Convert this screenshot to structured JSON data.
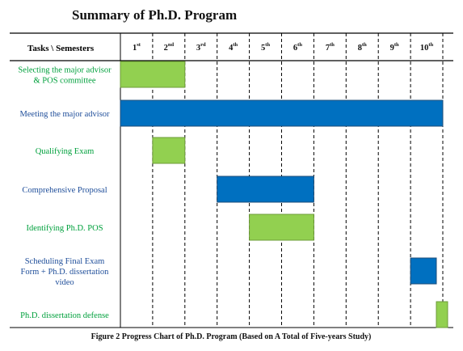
{
  "chart_data": {
    "type": "gantt",
    "title": "Summary of Ph.D. Program",
    "caption": "Figure 2  Progress Chart of Ph.D. Program (Based on A Total of Five-years Study)",
    "header_tasks": "Tasks",
    "header_sep": " \\ ",
    "header_semesters": "Semesters",
    "semesters": [
      {
        "num": "1",
        "sup": "st"
      },
      {
        "num": "2",
        "sup": "nd"
      },
      {
        "num": "3",
        "sup": "rd"
      },
      {
        "num": "4",
        "sup": "th"
      },
      {
        "num": "5",
        "sup": "th"
      },
      {
        "num": "6",
        "sup": "th"
      },
      {
        "num": "7",
        "sup": "th"
      },
      {
        "num": "8",
        "sup": "th"
      },
      {
        "num": "9",
        "sup": "th"
      },
      {
        "num": "10",
        "sup": "th"
      }
    ],
    "tasks": [
      {
        "label": [
          "Selecting the major advisor",
          "& POS committee"
        ],
        "label_color": "green",
        "start": 1,
        "end": 2,
        "color": "green"
      },
      {
        "label": [
          "Meeting the major advisor"
        ],
        "label_color": "blue",
        "start": 1,
        "end": 10,
        "color": "blue"
      },
      {
        "label": [
          "Qualifying Exam"
        ],
        "label_color": "green",
        "start": 2,
        "end": 2,
        "color": "green"
      },
      {
        "label": [
          "Comprehensive Proposal"
        ],
        "label_color": "blue",
        "start": 4,
        "end": 6,
        "color": "blue"
      },
      {
        "label": [
          "Identifying Ph.D. POS"
        ],
        "label_color": "green",
        "start": 5,
        "end": 6,
        "color": "green"
      },
      {
        "label": [
          "Scheduling Final Exam",
          "Form + Ph.D. dissertation",
          "video"
        ],
        "label_color": "blue",
        "start": 10.0,
        "end": 10.8,
        "color": "blue"
      },
      {
        "label": [
          "Ph.D. dissertation defense"
        ],
        "label_color": "green",
        "start": 10.8,
        "end": 11.15,
        "color": "green"
      }
    ],
    "colors": {
      "blue_fill": "#0070C0",
      "blue_stroke": "#1F4E79",
      "green_fill": "#92D050",
      "green_stroke": "#6E9C3A",
      "green_text": "#00A03C",
      "blue_text": "#1F4E9A"
    },
    "grid": "dashed vertical lines between semesters"
  }
}
